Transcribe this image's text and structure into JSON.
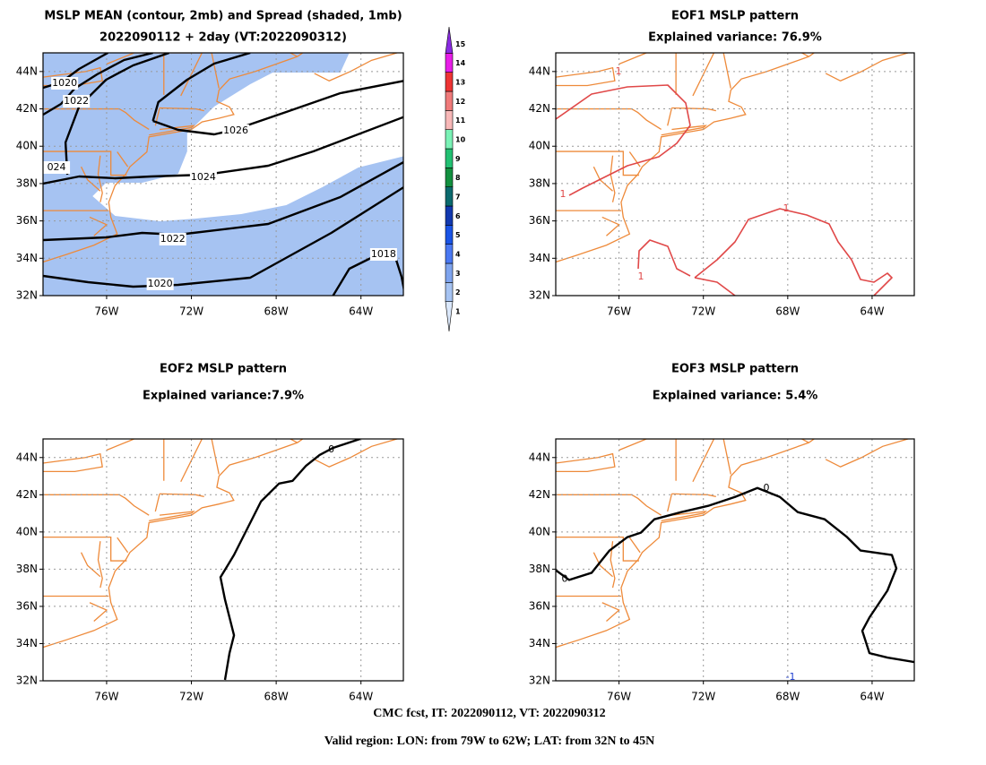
{
  "xlim": [
    -79,
    -62
  ],
  "ylim": [
    32,
    45
  ],
  "lat_ticks": [
    {
      "value": 32,
      "label": "32N"
    },
    {
      "value": 34,
      "label": "34N"
    },
    {
      "value": 36,
      "label": "36N"
    },
    {
      "value": 38,
      "label": "38N"
    },
    {
      "value": 40,
      "label": "40N"
    },
    {
      "value": 42,
      "label": "42N"
    },
    {
      "value": 44,
      "label": "44N"
    }
  ],
  "lon_ticks": [
    {
      "value": -76,
      "label": "76W"
    },
    {
      "value": -72,
      "label": "72W"
    },
    {
      "value": -68,
      "label": "68W"
    },
    {
      "value": -64,
      "label": "64W"
    }
  ],
  "panels": [
    {
      "title": [
        "MSLP MEAN (contour, 2mb) and Spread (shaded, 1mb)",
        "2022090112 + 2day (VT:2022090312)"
      ],
      "contour_labels": [
        1020,
        1022,
        "024",
        1026,
        1024,
        1022,
        1020,
        1018
      ]
    },
    {
      "title": [
        "EOF1 MSLP pattern",
        "Explained variance: 76.9%"
      ],
      "contour_labels": [
        1,
        1,
        1,
        1
      ]
    },
    {
      "title": [
        "EOF2 MSLP pattern",
        "Explained variance:7.9%"
      ],
      "contour_labels": [
        0
      ]
    },
    {
      "title": [
        "EOF3 MSLP pattern",
        "Explained variance: 5.4%"
      ],
      "contour_labels": [
        0,
        0,
        -1
      ]
    }
  ],
  "colorbar": {
    "labels": [
      1,
      2,
      3,
      4,
      5,
      6,
      7,
      8,
      9,
      10,
      11,
      12,
      13,
      14,
      15
    ],
    "colors": [
      "#dbe8fb",
      "#a6c3f2",
      "#7ea4ee",
      "#4a78f2",
      "#1a54e6",
      "#1239b0",
      "#0b6a6e",
      "#12903f",
      "#22c072",
      "#7af2b6",
      "#f8b8b8",
      "#f07a7a",
      "#ee3434",
      "#e81ee8",
      "#8a2be2"
    ]
  },
  "footer": [
    "CMC fcst, IT: 2022090112, VT: 2022090312",
    "Valid region: LON: from 79W to 62W; LAT: from 32N to 45N"
  ]
}
